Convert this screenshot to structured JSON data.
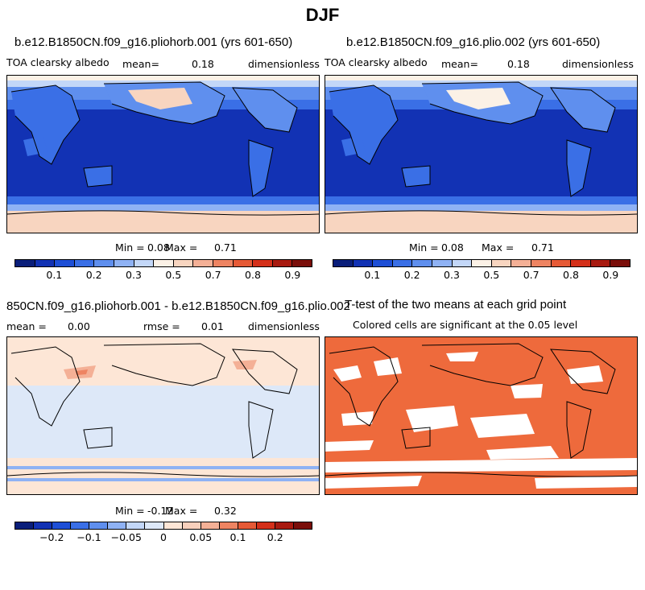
{
  "figure": {
    "title": "DJF"
  },
  "panels": {
    "p1": {
      "title": "b.e12.B1850CN.f09_g16.pliohorb.001 (yrs 601-650)",
      "left_label": "TOA clearsky albedo",
      "mean_label": "mean=",
      "mean_value": "0.18",
      "units": "dimensionless",
      "min_label": "Min =",
      "min_value": "0.08",
      "max_label": "Max =",
      "max_value": "0.71"
    },
    "p2": {
      "title": "b.e12.B1850CN.f09_g16.plio.002 (yrs 601-650)",
      "left_label": "TOA clearsky albedo",
      "mean_label": "mean=",
      "mean_value": "0.18",
      "units": "dimensionless",
      "min_label": "Min =",
      "min_value": "0.08",
      "max_label": "Max =",
      "max_value": "0.71"
    },
    "p3": {
      "title": "850CN.f09_g16.pliohorb.001 - b.e12.B1850CN.f09_g16.plio.002",
      "mean_label": "mean =",
      "mean_value": "0.00",
      "rmse_label": "rmse =",
      "rmse_value": "0.01",
      "units": "dimensionless",
      "min_label": "Min =",
      "min_value": "-0.12",
      "max_label": "Max =",
      "max_value": "0.32"
    },
    "p4": {
      "title": "T-test of the two means at each grid point",
      "subtitle": "Colored cells are significant at the 0.05 level"
    }
  },
  "colorbars": {
    "albedo": {
      "colors": [
        "#0a1e7a",
        "#1232b4",
        "#1e4fd6",
        "#3a6fe6",
        "#5f8fee",
        "#8fb2f4",
        "#c3d7f8",
        "#fbf1e6",
        "#f8d5c0",
        "#f4b096",
        "#ee8462",
        "#e65a36",
        "#d4301a",
        "#a81a10",
        "#7a0e0a"
      ],
      "ticks": [
        "0.1",
        "0.2",
        "0.3",
        "0.5",
        "0.7",
        "0.8",
        "0.9"
      ]
    },
    "diff": {
      "colors": [
        "#0a1e7a",
        "#1232b4",
        "#1e4fd6",
        "#3a6fe6",
        "#5f8fee",
        "#8fb2f4",
        "#c3d7f8",
        "#dde8f8",
        "#fde6d6",
        "#f8d0bc",
        "#f4b096",
        "#ee8462",
        "#e65a36",
        "#d4301a",
        "#a81a10",
        "#7a0e0a"
      ],
      "ticks": [
        "-0.2",
        "-0.1",
        "-0.05",
        "0",
        "0.05",
        "0.1",
        "0.2"
      ]
    }
  }
}
